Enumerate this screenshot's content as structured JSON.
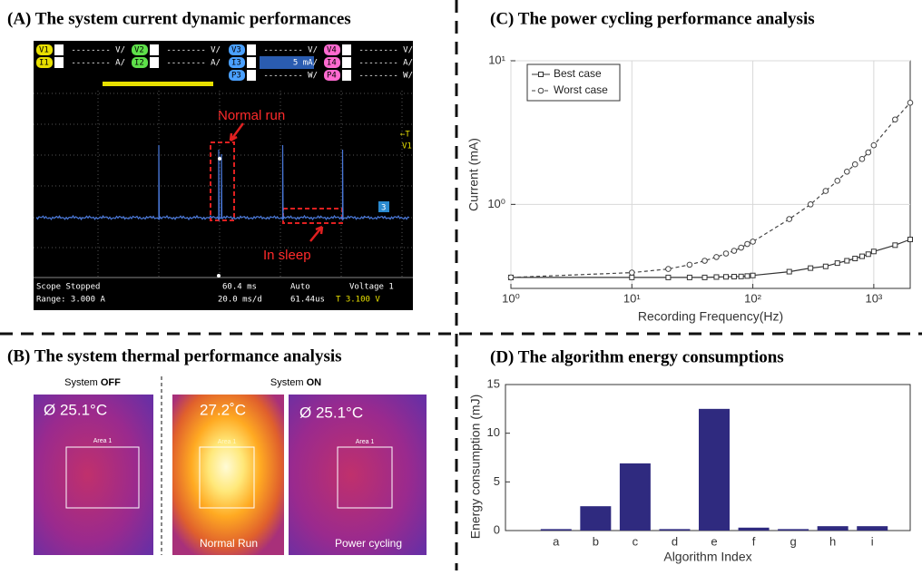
{
  "panels": {
    "a": {
      "title": "(A) The system current dynamic performances",
      "header_row1": [
        [
          "V1",
          "-------- V/"
        ],
        [
          "V2",
          "-------- V/"
        ],
        [
          "V3",
          "-------- V/"
        ],
        [
          "V4",
          "-------- V/"
        ]
      ],
      "header_row2": [
        [
          "I1",
          "-------- A/"
        ],
        [
          "I2",
          "-------- A/"
        ],
        [
          "I3",
          "5 mA/"
        ],
        [
          "I4",
          "-------- A/"
        ]
      ],
      "header_row3": [
        [
          "P3",
          "-------- W/"
        ],
        [
          "P4",
          "-------- W/"
        ]
      ],
      "annotations": [
        "Normal run",
        "In sleep"
      ],
      "trigger": [
        "←T",
        "V1"
      ],
      "marker": "3",
      "footer": [
        "Scope Stopped",
        "Range: 3.000 A",
        "60.4 ms",
        "20.0 ms/d",
        "Auto",
        "61.44us",
        "Voltage 1",
        "T 3.100 V"
      ]
    },
    "b": {
      "title": "(B) The system thermal performance analysis",
      "off_label": [
        "System ",
        "OFF"
      ],
      "on_label": [
        "System ",
        "ON"
      ],
      "images": [
        {
          "reading": "Ø   25.1°C",
          "area": "Area 1"
        },
        {
          "reading": "27.2˚C",
          "area": "Area 1",
          "caption": "Normal Run"
        },
        {
          "reading": "Ø  25.1°C",
          "area": "Area 1",
          "caption": "Power cycling"
        }
      ]
    }
  },
  "chart_data": [
    {
      "type": "line",
      "title": "(C) The power cycling performance analysis",
      "xlabel": "Recording Frequency(Hz)",
      "ylabel": "Current (mA)",
      "x": [
        1,
        10,
        20,
        30,
        40,
        50,
        60,
        70,
        80,
        90,
        100,
        200,
        300,
        400,
        500,
        600,
        700,
        800,
        900,
        1000,
        1500,
        2000
      ],
      "series": [
        {
          "name": "Best case",
          "color": "#333333",
          "style": "solid",
          "marker": "square",
          "values": [
            0.31,
            0.31,
            0.31,
            0.31,
            0.31,
            0.312,
            0.313,
            0.314,
            0.315,
            0.317,
            0.32,
            0.34,
            0.36,
            0.37,
            0.39,
            0.405,
            0.42,
            0.435,
            0.45,
            0.47,
            0.52,
            0.57
          ]
        },
        {
          "name": "Worst case",
          "color": "#444444",
          "style": "dashed",
          "marker": "circle",
          "values": [
            0.31,
            0.335,
            0.355,
            0.38,
            0.405,
            0.43,
            0.455,
            0.475,
            0.5,
            0.53,
            0.55,
            0.79,
            1.0,
            1.24,
            1.46,
            1.69,
            1.9,
            2.07,
            2.3,
            2.58,
            3.9,
            5.1
          ]
        }
      ],
      "xlim": [
        1,
        2000
      ],
      "ylim": [
        0.26,
        10
      ],
      "xticks": [
        {
          "value": 1,
          "label": "10⁰"
        },
        {
          "value": 10,
          "label": "10¹"
        },
        {
          "value": 100,
          "label": "10²"
        },
        {
          "value": 1000,
          "label": "10³"
        }
      ],
      "yticks": [
        {
          "value": 1,
          "label": "10⁰"
        },
        {
          "value": 10,
          "label": "10¹"
        }
      ],
      "xscale": "log",
      "yscale": "log",
      "grid": true,
      "legend": "upper left"
    },
    {
      "type": "bar",
      "title": "(D) The algorithm energy consumptions",
      "xlabel": "Algorithm Index",
      "ylabel": "Energy consumption (mJ)",
      "categories": [
        "a",
        "b",
        "c",
        "d",
        "e",
        "f",
        "g",
        "h",
        "i"
      ],
      "values": [
        0.15,
        2.5,
        6.9,
        0.15,
        12.5,
        0.3,
        0.15,
        0.45,
        0.45
      ],
      "color": "#2f2a7f",
      "ylim": [
        0,
        15
      ],
      "yticks": [
        0,
        5,
        10,
        15
      ],
      "grid": false
    }
  ]
}
